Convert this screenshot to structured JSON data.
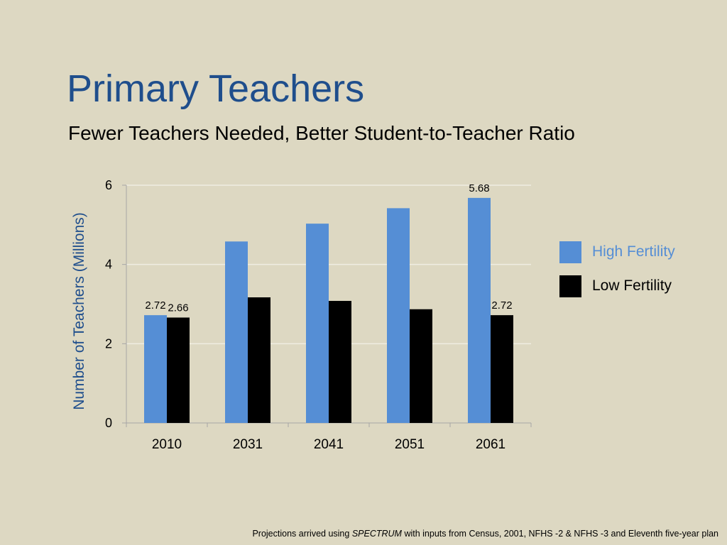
{
  "slide": {
    "title": "Primary Teachers",
    "subtitle": "Fewer Teachers Needed, Better Student-to-Teacher Ratio",
    "footnote": {
      "prefix": "Projections arrived using ",
      "emphasis": "SPECTRUM",
      "suffix": " with inputs from Census, 2001, NFHS -2 & NFHS -3 and Eleventh five-year plan"
    }
  },
  "chart_data": {
    "type": "bar",
    "title": "",
    "xlabel": "",
    "ylabel": "Number of Teachers (Millions)",
    "categories": [
      "2010",
      "2031",
      "2041",
      "2051",
      "2061"
    ],
    "ylim": [
      0,
      6
    ],
    "yticks": [
      0,
      2,
      4,
      6
    ],
    "grid": true,
    "legend_position": "right",
    "series": [
      {
        "name": "High Fertility",
        "color": "#558ed5",
        "values": [
          2.72,
          4.58,
          5.03,
          5.42,
          5.68
        ],
        "labels": [
          "2.72",
          "",
          "",
          "",
          "5.68"
        ]
      },
      {
        "name": "Low Fertility",
        "color": "#000000",
        "values": [
          2.66,
          3.17,
          3.08,
          2.87,
          2.72
        ],
        "labels": [
          "2.66",
          "",
          "",
          "",
          "2.72"
        ]
      }
    ],
    "colors": {
      "axis": "#a6a6a6",
      "grid": "#f0ede2",
      "ylabel": "#1f4e8c",
      "high_legend_text": "#558ed5",
      "low_legend_text": "#000000"
    }
  }
}
